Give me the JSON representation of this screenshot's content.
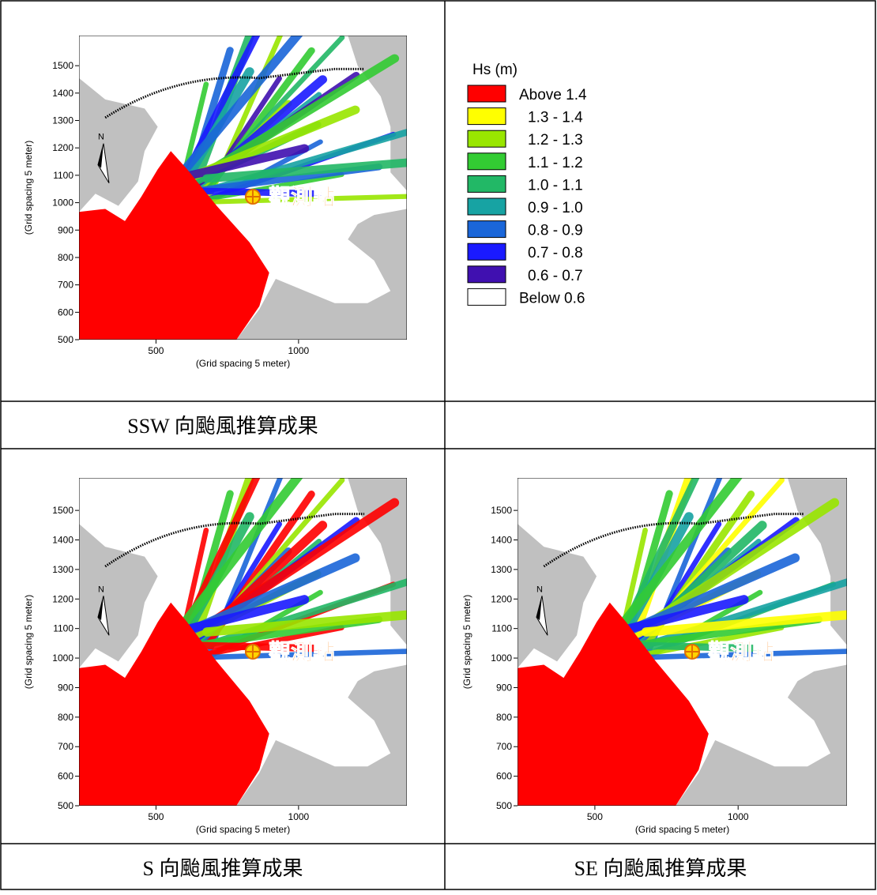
{
  "figures": [
    {
      "caption": "SSW 向颱風推算成果",
      "plot": {
        "xlabel": "(Grid spacing 5 meter)",
        "ylabel": "(Grid spacing 5 meter)",
        "xlim": [
          230,
          1380
        ],
        "ylim": [
          500,
          1610
        ],
        "xticks": [
          500,
          1000
        ],
        "yticks": [
          500,
          600,
          700,
          800,
          900,
          1000,
          1100,
          1200,
          1300,
          1400,
          1500
        ],
        "north": "N",
        "annotation": "觀測點"
      }
    },
    {
      "caption": "S 向颱風推算成果",
      "plot": {
        "xlabel": "(Grid spacing 5 meter)",
        "ylabel": "(Grid spacing 5 meter)",
        "xlim": [
          230,
          1380
        ],
        "ylim": [
          500,
          1610
        ],
        "xticks": [
          500,
          1000
        ],
        "yticks": [
          500,
          600,
          700,
          800,
          900,
          1000,
          1100,
          1200,
          1300,
          1400,
          1500
        ],
        "north": "N",
        "annotation": "觀測點"
      }
    },
    {
      "caption": "SE 向颱風推算成果",
      "plot": {
        "xlabel": "(Grid spacing 5 meter)",
        "ylabel": "(Grid spacing 5 meter)",
        "xlim": [
          230,
          1380
        ],
        "ylim": [
          500,
          1610
        ],
        "xticks": [
          500,
          1000
        ],
        "yticks": [
          500,
          600,
          700,
          800,
          900,
          1000,
          1100,
          1200,
          1300,
          1400,
          1500
        ],
        "north": "N",
        "annotation": "觀測點"
      }
    }
  ],
  "legend": {
    "title": "Hs (m)",
    "entries": [
      {
        "label": "Above 1.4",
        "color": "#ff0000"
      },
      {
        "label": "1.3 - 1.4",
        "color": "#ffff00"
      },
      {
        "label": "1.2 - 1.3",
        "color": "#99e600"
      },
      {
        "label": "1.1 - 1.2",
        "color": "#33cc33"
      },
      {
        "label": "1.0 - 1.1",
        "color": "#22b866"
      },
      {
        "label": "0.9 - 1.0",
        "color": "#17a3a3"
      },
      {
        "label": "0.8 - 0.9",
        "color": "#1a66d9"
      },
      {
        "label": "0.7 - 0.8",
        "color": "#1a1aff"
      },
      {
        "label": "0.6 - 0.7",
        "color": "#4010b0"
      },
      {
        "label": "Below 0.6",
        "color": "#ffffff"
      }
    ]
  }
}
